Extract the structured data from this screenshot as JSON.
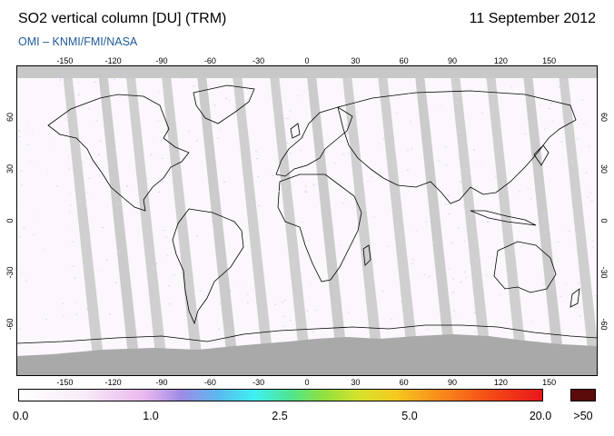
{
  "header": {
    "title": "SO2 vertical column [DU] (TRM)",
    "date": "11 September 2012",
    "credit": "OMI  –  KNMI/FMI/NASA"
  },
  "map": {
    "projection": "equirectangular",
    "lon_range": [
      -180,
      180
    ],
    "lat_range": [
      -90,
      90
    ],
    "lon_ticks": [
      -150,
      -120,
      -90,
      -60,
      -30,
      0,
      30,
      60,
      90,
      120,
      150
    ],
    "lat_ticks": [
      60,
      30,
      0,
      -30,
      -60
    ],
    "background_color": "#fbf7fc",
    "no_data_color": "#c8c8c8",
    "polar_no_data_color": "#a9a9a9",
    "coastline_color": "#000000",
    "swath_gap_lon": [
      -150,
      -128,
      -111,
      -89,
      -67,
      -45,
      -22,
      1,
      23,
      45,
      68,
      90,
      112,
      135,
      157
    ]
  },
  "colorbar": {
    "labels": [
      "0.0",
      "1.0",
      "2.5",
      "5.0",
      "20.0",
      ">50"
    ],
    "stops": [
      {
        "pos": 0.0,
        "color": "#ffffff"
      },
      {
        "pos": 0.12,
        "color": "#f9ecf9"
      },
      {
        "pos": 0.24,
        "color": "#e8b8ee"
      },
      {
        "pos": 0.31,
        "color": "#9f8be6"
      },
      {
        "pos": 0.38,
        "color": "#5bb8ee"
      },
      {
        "pos": 0.45,
        "color": "#3ff0f0"
      },
      {
        "pos": 0.52,
        "color": "#4fe58f"
      },
      {
        "pos": 0.58,
        "color": "#8fe040"
      },
      {
        "pos": 0.65,
        "color": "#d6e22c"
      },
      {
        "pos": 0.72,
        "color": "#f5c91f"
      },
      {
        "pos": 0.8,
        "color": "#f88e1c"
      },
      {
        "pos": 0.9,
        "color": "#f44b17"
      },
      {
        "pos": 1.0,
        "color": "#e8161a"
      }
    ],
    "overflow_color": "#5a0a0a"
  }
}
